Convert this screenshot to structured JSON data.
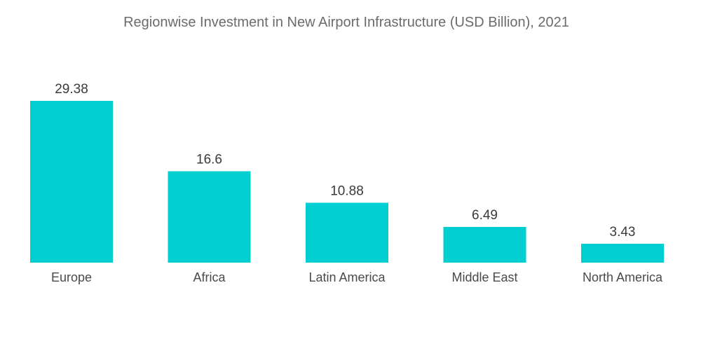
{
  "chart_data": {
    "type": "bar",
    "title": "Regionwise Investment in New Airport Infrastructure (USD Billion), 2021",
    "xlabel": "",
    "ylabel": "",
    "categories": [
      "Europe",
      "Africa",
      "Latin America",
      "Middle East",
      "North America"
    ],
    "values": [
      29.38,
      16.6,
      10.88,
      6.49,
      3.43
    ],
    "value_labels": [
      "29.38",
      "16.6",
      "10.88",
      "6.49",
      "3.43"
    ],
    "ylim": [
      0,
      29.38
    ],
    "grid": false,
    "legend": "none"
  },
  "colors": {
    "bar": "#00ced1",
    "title": "#6b6b6b",
    "label": "#3a3a3a"
  }
}
